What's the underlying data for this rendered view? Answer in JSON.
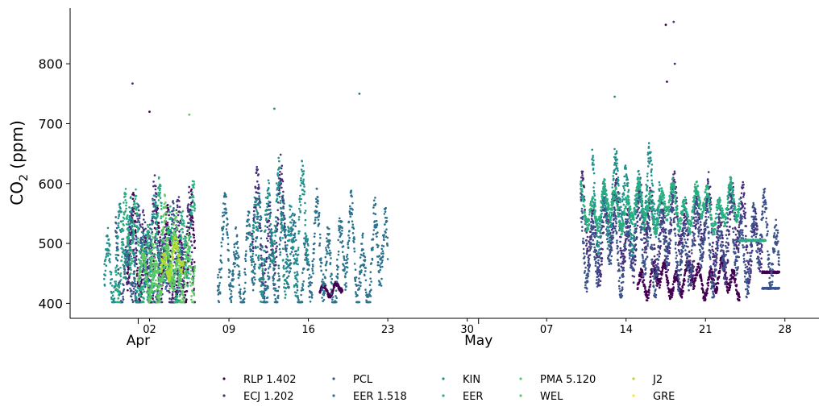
{
  "chart_data": {
    "type": "scatter",
    "ylabel_main": "CO",
    "ylabel_sub": "2",
    "ylabel_unit": " (ppm)",
    "xlabel": "",
    "ylim": [
      375,
      893
    ],
    "xlim": [
      "2022-03-26",
      "2022-05-31"
    ],
    "yticks": [
      400,
      500,
      600,
      700,
      800
    ],
    "xticks": [
      {
        "date": "2022-04-02",
        "label": "02"
      },
      {
        "date": "2022-04-09",
        "label": "09"
      },
      {
        "date": "2022-04-16",
        "label": "16"
      },
      {
        "date": "2022-04-23",
        "label": "23"
      },
      {
        "date": "2022-04-30",
        "label": "30"
      },
      {
        "date": "2022-05-07",
        "label": "07"
      },
      {
        "date": "2022-05-14",
        "label": "14"
      },
      {
        "date": "2022-05-21",
        "label": "21"
      },
      {
        "date": "2022-05-28",
        "label": "28"
      }
    ],
    "month_labels": [
      {
        "date": "2022-04-01",
        "label": "Apr"
      },
      {
        "date": "2022-05-01",
        "label": "May"
      }
    ],
    "grid": false,
    "legend_position": "bottom-center",
    "series": [
      {
        "name": "RLP 1.402",
        "color": "#440154",
        "segments": [
          {
            "start": "2022-03-31",
            "end": "2022-04-06",
            "base": 470,
            "amp": 110,
            "spikes": [
              [
                2,
                720
              ]
            ]
          },
          {
            "start": "2022-04-17",
            "end": "2022-04-19",
            "base": 425,
            "amp": 15
          },
          {
            "start": "2022-05-15",
            "end": "2022-05-24",
            "base": 440,
            "amp": 35,
            "spikes": [
              [
                2.5,
                865
              ],
              [
                2.6,
                770
              ]
            ]
          },
          {
            "start": "2022-05-26",
            "end": "2022-05-27.5",
            "base": 452,
            "amp": 3
          }
        ]
      },
      {
        "name": "ECJ 1.202",
        "color": "#472d7b",
        "segments": [
          {
            "start": "2022-03-31",
            "end": "2022-04-06",
            "base": 480,
            "amp": 120,
            "spikes": [
              [
                0.5,
                767
              ]
            ]
          },
          {
            "start": "2022-04-11",
            "end": "2022-04-14",
            "base": 520,
            "amp": 120
          },
          {
            "start": "2022-05-10",
            "end": "2022-05-26",
            "base": 520,
            "amp": 90,
            "spikes": [
              [
                8.2,
                870
              ],
              [
                8.3,
                800
              ]
            ]
          }
        ]
      },
      {
        "name": "PCL",
        "color": "#3b528b",
        "segments": [
          {
            "start": "2022-03-30",
            "end": "2022-04-05",
            "base": 470,
            "amp": 90
          },
          {
            "start": "2022-05-10",
            "end": "2022-05-27.5",
            "base": 500,
            "amp": 90
          },
          {
            "start": "2022-05-26",
            "end": "2022-05-27.5",
            "base": 425,
            "amp": 2
          }
        ]
      },
      {
        "name": "EER 1.518",
        "color": "#2c728e",
        "segments": [
          {
            "start": "2022-04-08",
            "end": "2022-04-23",
            "base": 470,
            "amp": 110,
            "spikes": [
              [
                12.5,
                750
              ]
            ]
          }
        ]
      },
      {
        "name": "KIN",
        "color": "#21918c",
        "segments": [
          {
            "start": "2022-03-29",
            "end": "2022-04-03",
            "base": 480,
            "amp": 100
          },
          {
            "start": "2022-04-11",
            "end": "2022-04-16",
            "base": 520,
            "amp": 120,
            "spikes": [
              [
                2,
                725
              ]
            ]
          },
          {
            "start": "2022-05-11",
            "end": "2022-05-17",
            "base": 570,
            "amp": 90,
            "spikes": [
              [
                2,
                745
              ]
            ]
          }
        ]
      },
      {
        "name": "EER",
        "color": "#28ae80",
        "segments": [
          {
            "start": "2022-03-30",
            "end": "2022-04-06",
            "base": 490,
            "amp": 110
          },
          {
            "start": "2022-05-10",
            "end": "2022-05-24",
            "base": 560,
            "amp": 45
          },
          {
            "start": "2022-05-24",
            "end": "2022-05-26.3",
            "base": 505,
            "amp": 2
          }
        ]
      },
      {
        "name": "PMA 5.120",
        "color": "#5ec962",
        "segments": [
          {
            "start": "2022-04-02",
            "end": "2022-04-06",
            "base": 470,
            "amp": 110,
            "spikes": [
              [
                3.5,
                715
              ]
            ]
          }
        ]
      },
      {
        "name": "WEL",
        "color": "#5ec962",
        "segments": [
          {
            "start": "2022-04-01",
            "end": "2022-04-05",
            "base": 450,
            "amp": 50
          }
        ]
      },
      {
        "name": "J2",
        "color": "#addc30",
        "segments": [
          {
            "start": "2022-04-03",
            "end": "2022-04-05",
            "base": 470,
            "amp": 40
          }
        ]
      },
      {
        "name": "GRE",
        "color": "#fde725",
        "segments": []
      }
    ]
  }
}
